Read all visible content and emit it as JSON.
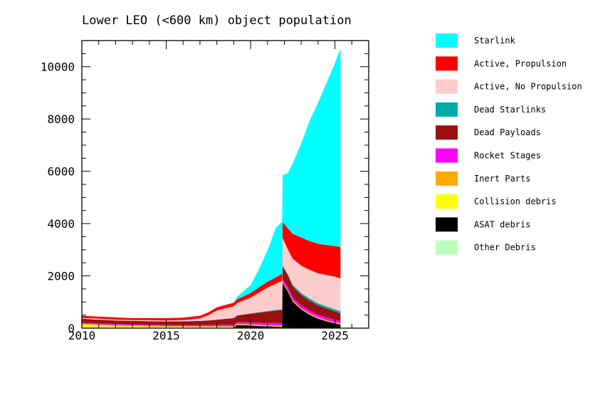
{
  "chart_data": {
    "type": "area",
    "title": "Lower LEO (<600 km) object population",
    "xlabel": "",
    "ylabel": "",
    "xlim": [
      2010,
      2027
    ],
    "ylim": [
      0,
      11000
    ],
    "xticks": [
      2010,
      2015,
      2020,
      2025
    ],
    "yticks": [
      0,
      2000,
      4000,
      6000,
      8000,
      10000
    ],
    "x": [
      2010.0,
      2011.0,
      2012.0,
      2013.0,
      2014.0,
      2015.0,
      2016.0,
      2017.0,
      2017.5,
      2018.0,
      2019.0,
      2019.2,
      2020.0,
      2020.5,
      2021.0,
      2021.5,
      2021.87,
      2021.9,
      2022.2,
      2022.5,
      2023.0,
      2023.5,
      2024.0,
      2024.5,
      2025.0,
      2025.33
    ],
    "series": [
      {
        "name": "Other Debris",
        "color": "#bbffbb",
        "values": [
          40,
          35,
          30,
          25,
          25,
          25,
          25,
          25,
          25,
          25,
          25,
          20,
          20,
          20,
          20,
          20,
          20,
          20,
          15,
          15,
          15,
          15,
          15,
          15,
          15,
          15
        ]
      },
      {
        "name": "ASAT debris",
        "color": "#000000",
        "values": [
          0,
          0,
          0,
          0,
          0,
          0,
          0,
          0,
          0,
          0,
          0,
          100,
          80,
          60,
          50,
          40,
          30,
          1700,
          1400,
          1000,
          700,
          500,
          350,
          250,
          170,
          120
        ]
      },
      {
        "name": "Collision debris",
        "color": "#ffff00",
        "values": [
          100,
          80,
          60,
          50,
          40,
          30,
          25,
          20,
          20,
          20,
          20,
          20,
          20,
          20,
          20,
          20,
          20,
          20,
          20,
          20,
          15,
          15,
          15,
          15,
          15,
          15
        ]
      },
      {
        "name": "Inert Parts",
        "color": "#ffaa00",
        "values": [
          30,
          30,
          30,
          30,
          30,
          30,
          30,
          30,
          30,
          30,
          30,
          30,
          30,
          30,
          30,
          30,
          30,
          30,
          30,
          30,
          30,
          30,
          30,
          30,
          30,
          30
        ]
      },
      {
        "name": "Rocket Stages",
        "color": "#ff00ff",
        "values": [
          40,
          40,
          40,
          40,
          40,
          40,
          40,
          50,
          50,
          50,
          60,
          60,
          70,
          80,
          80,
          90,
          90,
          110,
          110,
          110,
          110,
          110,
          100,
          100,
          90,
          90
        ]
      },
      {
        "name": "Dead Payloads",
        "color": "#991111",
        "values": [
          150,
          140,
          130,
          130,
          130,
          130,
          140,
          150,
          170,
          200,
          250,
          250,
          330,
          380,
          430,
          470,
          500,
          480,
          450,
          420,
          400,
          380,
          360,
          340,
          320,
          300
        ]
      },
      {
        "name": "Dead Starlinks",
        "color": "#00aaaa",
        "values": [
          0,
          0,
          0,
          0,
          0,
          0,
          0,
          0,
          0,
          0,
          0,
          10,
          15,
          20,
          25,
          30,
          30,
          40,
          50,
          60,
          70,
          80,
          80,
          80,
          80,
          80
        ]
      },
      {
        "name": "Active, No Propulsion",
        "color": "#ffcccc",
        "values": [
          30,
          40,
          40,
          30,
          40,
          40,
          50,
          100,
          200,
          350,
          450,
          470,
          600,
          750,
          900,
          1000,
          1100,
          1050,
          950,
          1000,
          1050,
          1100,
          1150,
          1200,
          1250,
          1250
        ]
      },
      {
        "name": "Active, Propulsion",
        "color": "#ff0000",
        "values": [
          80,
          80,
          80,
          75,
          80,
          85,
          90,
          100,
          110,
          120,
          140,
          140,
          180,
          200,
          220,
          240,
          260,
          600,
          800,
          950,
          1080,
          1100,
          1130,
          1150,
          1170,
          1200
        ]
      },
      {
        "name": "Starlink",
        "color": "#00ffff",
        "values": [
          0,
          0,
          0,
          0,
          0,
          0,
          0,
          0,
          0,
          0,
          0,
          100,
          300,
          700,
          1200,
          1900,
          2000,
          1800,
          2100,
          2700,
          3600,
          4600,
          5400,
          6200,
          7000,
          7600
        ]
      }
    ],
    "legend_position": "right",
    "grid": false
  }
}
